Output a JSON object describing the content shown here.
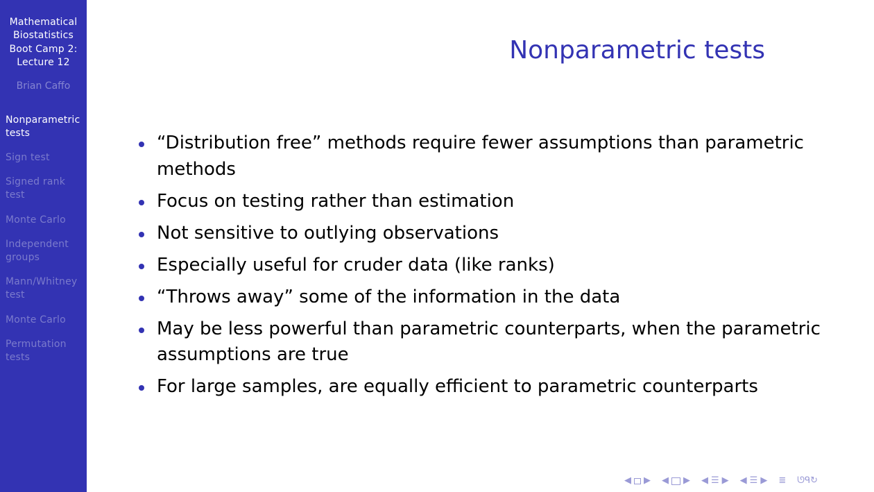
{
  "sidebar": {
    "title": "Mathematical\nBiostatistics\nBoot Camp 2:\nLecture 12",
    "author": "Brian Caffo",
    "items": [
      {
        "label": "Nonparametric\ntests"
      },
      {
        "label": "Sign test"
      },
      {
        "label": "Signed rank\ntest"
      },
      {
        "label": "Monte Carlo"
      },
      {
        "label": "Independent\ngroups"
      },
      {
        "label": "Mann/Whitney\ntest"
      },
      {
        "label": "Monte Carlo"
      },
      {
        "label": "Permutation\ntests"
      }
    ]
  },
  "slide": {
    "title": "Nonparametric tests",
    "bullets": [
      "“Distribution free” methods require fewer assumptions than parametric methods",
      "Focus on testing rather than estimation",
      "Not sensitive to outlying observations",
      "Especially useful for cruder data (like ranks)",
      "“Throws away” some of the information in the data",
      "May be less powerful than parametric counterparts, when the parametric assumptions are true",
      "For large samples, are equally efficient to parametric counterparts"
    ]
  },
  "colors": {
    "sidebar_bg": "#3333b3",
    "title": "#3333b3",
    "nav_inactive": "#7b7bcc",
    "nav_active": "#ffffff",
    "bullet": "#3333b3"
  },
  "navigation_icons": [
    "first-slide-icon",
    "previous-frame-icon",
    "next-frame-icon",
    "previous-subsection-icon",
    "subsection-icon",
    "next-subsection-icon",
    "previous-section-icon",
    "section-icon",
    "next-section-icon",
    "toc-icon",
    "search-icon"
  ],
  "navbar_glyphs": {
    "left": "◀",
    "right": "▶",
    "section": "☰",
    "toc": "≣",
    "search": "ᘎᑫ↻"
  }
}
